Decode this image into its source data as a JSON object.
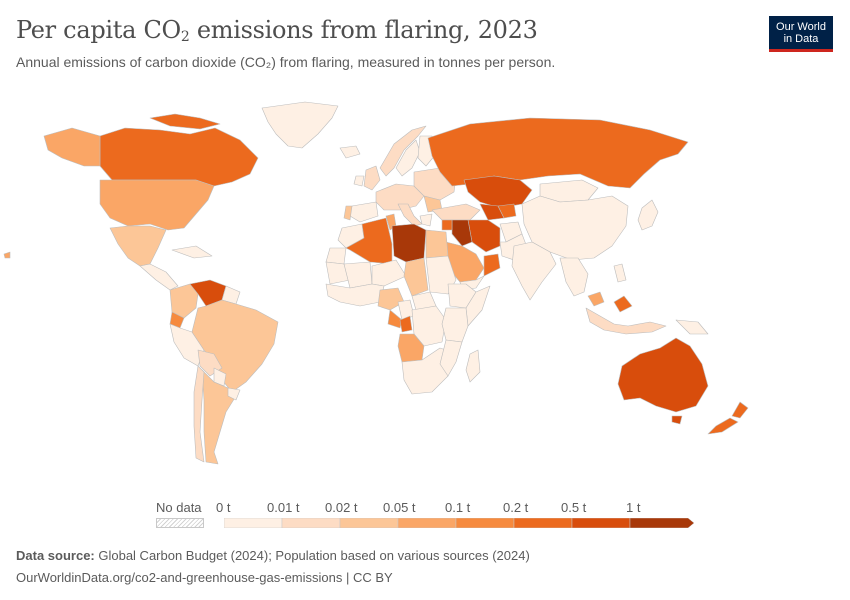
{
  "header": {
    "title_pre": "Per capita CO",
    "title_sub": "2",
    "title_post": " emissions from flaring, 2023",
    "subtitle": "Annual emissions of carbon dioxide (CO₂) from flaring, measured in tonnes per person."
  },
  "logo": {
    "line1": "Our World",
    "line2": "in Data",
    "bg": "#002147",
    "accent": "#ce261e"
  },
  "legend": {
    "no_data": "No data",
    "bins": [
      "0 t",
      "0.01 t",
      "0.02 t",
      "0.05 t",
      "0.1 t",
      "0.2 t",
      "0.5 t",
      "1 t"
    ],
    "colors": [
      "#fef0e4",
      "#fddcc4",
      "#fcc697",
      "#faa666",
      "#f68a3e",
      "#ec6a1e",
      "#d84d0c",
      "#a83809"
    ]
  },
  "footer": {
    "source_label": "Data source:",
    "source_text": " Global Carbon Budget (2024); Population based on various sources (2024)",
    "url_license": "OurWorldinData.org/co2-and-greenhouse-gas-emissions | CC BY"
  }
}
